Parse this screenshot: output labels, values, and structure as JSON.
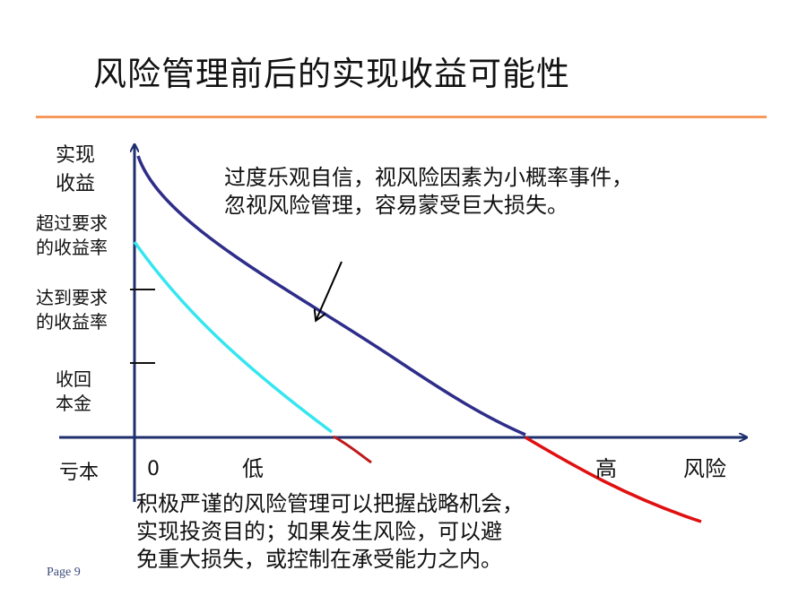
{
  "slide": {
    "title": "风险管理前后的实现收益可能性",
    "page_label": "Page 9"
  },
  "axes": {
    "y_label_line1": "实现",
    "y_label_line2": "收益",
    "x_label": "风险",
    "origin_label": "0",
    "x_low": "低",
    "x_high": "高",
    "loss_label": "亏本"
  },
  "y_levels": [
    {
      "line1": "超过要求",
      "line2": "的收益率"
    },
    {
      "line1": "达到要求",
      "line2": "的收益率"
    },
    {
      "line1": "收回",
      "line2": "本金"
    }
  ],
  "annotations": {
    "optimism": {
      "line1": "过度乐观自信，视风险因素为小概率事件，",
      "line2": "忽视风险管理，容易蒙受巨大损失。"
    },
    "managed": {
      "line1": "积极严谨的风险管理可以把握战略机会，",
      "line2": "实现投资目的；如果发生风险，可以避",
      "line3": "免重大损失，或控制在承受能力之内。"
    }
  },
  "colors": {
    "axis": "#1f2f6e",
    "unmanaged_curve": "#2e2e8a",
    "managed_curve": "#35e6f0",
    "loss_curve": "#e01010",
    "rule": "#f59a5c"
  }
}
